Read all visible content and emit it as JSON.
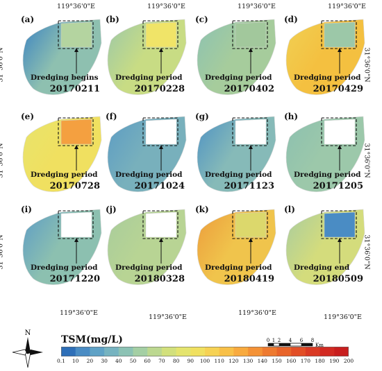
{
  "panels": [
    {
      "label": "(a)",
      "date": "20170211",
      "annotation": "Dredging begins"
    },
    {
      "label": "(b)",
      "date": "20170228",
      "annotation": "Dredging period"
    },
    {
      "label": "(c)",
      "date": "20170402",
      "annotation": "Dredging period"
    },
    {
      "label": "(d)",
      "date": "20170429",
      "annotation": "Dredging period"
    },
    {
      "label": "(e)",
      "date": "20170728",
      "annotation": "Dredging period"
    },
    {
      "label": "(f)",
      "date": "20171024",
      "annotation": "Dredging period"
    },
    {
      "label": "(g)",
      "date": "20171123",
      "annotation": "Dredging period"
    },
    {
      "label": "(h)",
      "date": "20171205",
      "annotation": "Dredging period"
    },
    {
      "label": "(i)",
      "date": "20171220",
      "annotation": "Dredging period"
    },
    {
      "label": "(j)",
      "date": "20180328",
      "annotation": "Dredging period"
    },
    {
      "label": "(k)",
      "date": "20180419",
      "annotation": "Dredging period"
    },
    {
      "label": "(l)",
      "date": "20180509",
      "annotation": "Dredging end"
    }
  ],
  "coords": {
    "lon": "119°36'0\"E",
    "lat": "31°36'0\"N"
  },
  "legend": {
    "title": "TSM(mg/L)",
    "ticks": [
      "0.1",
      "10",
      "20",
      "30",
      "40",
      "50",
      "60",
      "70",
      "80",
      "90",
      "100",
      "110",
      "120",
      "130",
      "140",
      "150",
      "160",
      "170",
      "180",
      "190",
      "200"
    ],
    "colors": [
      "#2e6fb8",
      "#4a8cc4",
      "#5fa2c6",
      "#76b3c0",
      "#8cc2b4",
      "#a4cfa4",
      "#bcd890",
      "#d2e07c",
      "#e4e46e",
      "#f0e060",
      "#f6d254",
      "#f8c048",
      "#f8aa3e",
      "#f49236",
      "#ee7a30",
      "#e8642a",
      "#e24e26",
      "#da3a24",
      "#d22a22",
      "#c81e1e"
    ]
  },
  "north_label": "N",
  "scalebar": {
    "ticks": [
      "0",
      "1",
      "2",
      "4",
      "6",
      "8"
    ],
    "unit": "Km"
  },
  "panel_colors": [
    {
      "base": "#8ec0b0",
      "west": "#3a82c2",
      "box": "#b4d4a0"
    },
    {
      "base": "#c8dc84",
      "west": "#9cc8a8",
      "box": "#f0e468"
    },
    {
      "base": "#a6cc9c",
      "west": "#8cc2b2",
      "box": "#a2c89c"
    },
    {
      "base": "#f4c040",
      "west": "#f0d054",
      "box": "#9cc8a8"
    },
    {
      "base": "#f0e060",
      "west": "#e8e46c",
      "box": "#f4a040"
    },
    {
      "base": "#78b0bc",
      "west": "#5c9cc4",
      "box": "#ffffff"
    },
    {
      "base": "#86bab8",
      "west": "#4e92c4",
      "box": "#ffffff"
    },
    {
      "base": "#9cc8aa",
      "west": "#8cc0b0",
      "box": "#ffffff"
    },
    {
      "base": "#8cc0b0",
      "west": "#5c9cc6",
      "box": "#ffffff"
    },
    {
      "base": "#b8d494",
      "west": "#a8cc9c",
      "box": "#ffffff"
    },
    {
      "base": "#f0c44c",
      "west": "#ec9c3c",
      "box": "#dcd86c"
    },
    {
      "base": "#d4dc7c",
      "west": "#a8cca0",
      "box": "#4a8cc4"
    }
  ]
}
